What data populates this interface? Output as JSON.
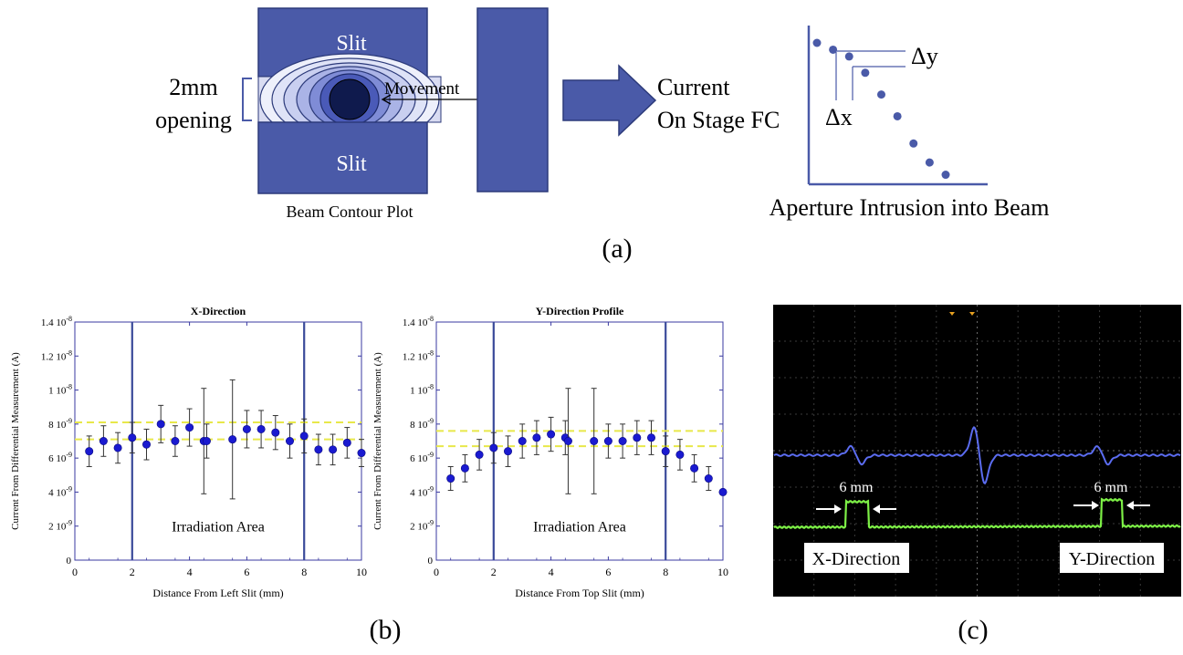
{
  "panel_a": {
    "slit_top_label": "Slit",
    "slit_bottom_label": "Slit",
    "opening_label_line1": "2mm",
    "opening_label_line2": "opening",
    "movement_label": "Movement",
    "beam_contour_label": "Beam Contour Plot",
    "current_label_line1": "Current",
    "current_label_line2": "On Stage FC",
    "delta_y_label": "Δy",
    "delta_x_label": "Δx",
    "aperture_label": "Aperture Intrusion into Beam",
    "caption": "(a)",
    "schematic_points": [
      {
        "x": 0,
        "y": 1.0
      },
      {
        "x": 1,
        "y": 0.95
      },
      {
        "x": 2,
        "y": 0.9
      },
      {
        "x": 3,
        "y": 0.78
      },
      {
        "x": 4,
        "y": 0.62
      },
      {
        "x": 5,
        "y": 0.46
      },
      {
        "x": 6,
        "y": 0.26
      },
      {
        "x": 7,
        "y": 0.12
      },
      {
        "x": 8,
        "y": 0.03
      }
    ]
  },
  "panel_b": {
    "caption": "(b)",
    "irradiation_label": "Irradiation Area",
    "ylabel": "Current From Differential Measurement (A)",
    "y_tick_labels": [
      "0",
      "2 10",
      "4 10",
      "6 10",
      "8 10",
      "1 10",
      "1.2 10",
      "1.4 10"
    ],
    "y_tick_exponents": [
      "",
      "-9",
      "-9",
      "-9",
      "-9",
      "-8",
      "-8",
      "-8"
    ],
    "x_tick_labels": [
      "0",
      "2",
      "4",
      "6",
      "8",
      "10"
    ]
  },
  "panel_c": {
    "caption": "(c)",
    "x_direction_label": "X-Direction",
    "y_direction_label": "Y-Direction",
    "mm_label_left": "6 mm",
    "mm_label_right": "6 mm",
    "colors": {
      "blue_trace": "#5b6cf0",
      "green_trace": "#7df046",
      "background": "#000000"
    }
  },
  "chart_data": [
    {
      "type": "scatter",
      "title": "X-Direction",
      "xlabel": "Distance From Left Slit (mm)",
      "ylabel": "Current From Differential Measurement (A)",
      "xlim": [
        0,
        10
      ],
      "ylim": [
        0,
        1.4e-08
      ],
      "vertical_lines": [
        2,
        8
      ],
      "horizontal_dashed_lines": [
        7.1e-09,
        8.1e-09
      ],
      "annotation": "Irradiation Area",
      "points": [
        {
          "x": 0.5,
          "y": 6.4e-09,
          "err": 9e-10
        },
        {
          "x": 1.0,
          "y": 7e-09,
          "err": 9e-10
        },
        {
          "x": 1.5,
          "y": 6.6e-09,
          "err": 9e-10
        },
        {
          "x": 2.0,
          "y": 7.2e-09,
          "err": 9e-10
        },
        {
          "x": 2.5,
          "y": 6.8e-09,
          "err": 9e-10
        },
        {
          "x": 3.0,
          "y": 8e-09,
          "err": 1.1e-09
        },
        {
          "x": 3.5,
          "y": 7e-09,
          "err": 9e-10
        },
        {
          "x": 4.0,
          "y": 7.8e-09,
          "err": 1.1e-09
        },
        {
          "x": 4.5,
          "y": 7e-09,
          "err": 3.1e-09
        },
        {
          "x": 4.6,
          "y": 7e-09,
          "err": 1e-09
        },
        {
          "x": 5.5,
          "y": 7.1e-09,
          "err": 3.5e-09
        },
        {
          "x": 6.0,
          "y": 7.7e-09,
          "err": 1.1e-09
        },
        {
          "x": 6.5,
          "y": 7.7e-09,
          "err": 1.1e-09
        },
        {
          "x": 7.0,
          "y": 7.5e-09,
          "err": 1e-09
        },
        {
          "x": 7.5,
          "y": 7e-09,
          "err": 1e-09
        },
        {
          "x": 8.0,
          "y": 7.3e-09,
          "err": 1e-09
        },
        {
          "x": 8.5,
          "y": 6.5e-09,
          "err": 9e-10
        },
        {
          "x": 9.0,
          "y": 6.5e-09,
          "err": 9e-10
        },
        {
          "x": 9.5,
          "y": 6.9e-09,
          "err": 9e-10
        },
        {
          "x": 10.0,
          "y": 6.3e-09,
          "err": 8e-10
        }
      ]
    },
    {
      "type": "scatter",
      "title": "Y-Direction Profile",
      "xlabel": "Distance From Top Slit (mm)",
      "ylabel": "Current From Differential Measurement (A)",
      "xlim": [
        0,
        10
      ],
      "ylim": [
        0,
        1.4e-08
      ],
      "vertical_lines": [
        2,
        8
      ],
      "horizontal_dashed_lines": [
        6.7e-09,
        7.6e-09
      ],
      "annotation": "Irradiation Area",
      "points": [
        {
          "x": 0.5,
          "y": 4.8e-09,
          "err": 7e-10
        },
        {
          "x": 1.0,
          "y": 5.4e-09,
          "err": 8e-10
        },
        {
          "x": 1.5,
          "y": 6.2e-09,
          "err": 9e-10
        },
        {
          "x": 2.0,
          "y": 6.6e-09,
          "err": 9e-10
        },
        {
          "x": 2.5,
          "y": 6.4e-09,
          "err": 9e-10
        },
        {
          "x": 3.0,
          "y": 7e-09,
          "err": 1e-09
        },
        {
          "x": 3.5,
          "y": 7.2e-09,
          "err": 1e-09
        },
        {
          "x": 4.0,
          "y": 7.4e-09,
          "err": 1e-09
        },
        {
          "x": 4.5,
          "y": 7.2e-09,
          "err": 1e-09
        },
        {
          "x": 4.6,
          "y": 7e-09,
          "err": 3.1e-09
        },
        {
          "x": 5.5,
          "y": 7e-09,
          "err": 3.1e-09
        },
        {
          "x": 6.0,
          "y": 7e-09,
          "err": 1e-09
        },
        {
          "x": 6.5,
          "y": 7e-09,
          "err": 1e-09
        },
        {
          "x": 7.0,
          "y": 7.2e-09,
          "err": 1e-09
        },
        {
          "x": 7.5,
          "y": 7.2e-09,
          "err": 1e-09
        },
        {
          "x": 8.0,
          "y": 6.4e-09,
          "err": 9e-10
        },
        {
          "x": 8.5,
          "y": 6.2e-09,
          "err": 9e-10
        },
        {
          "x": 9.0,
          "y": 5.4e-09,
          "err": 8e-10
        },
        {
          "x": 9.5,
          "y": 4.8e-09,
          "err": 7e-10
        },
        {
          "x": 10.0,
          "y": 4e-09,
          "err": 0.0
        }
      ]
    }
  ]
}
